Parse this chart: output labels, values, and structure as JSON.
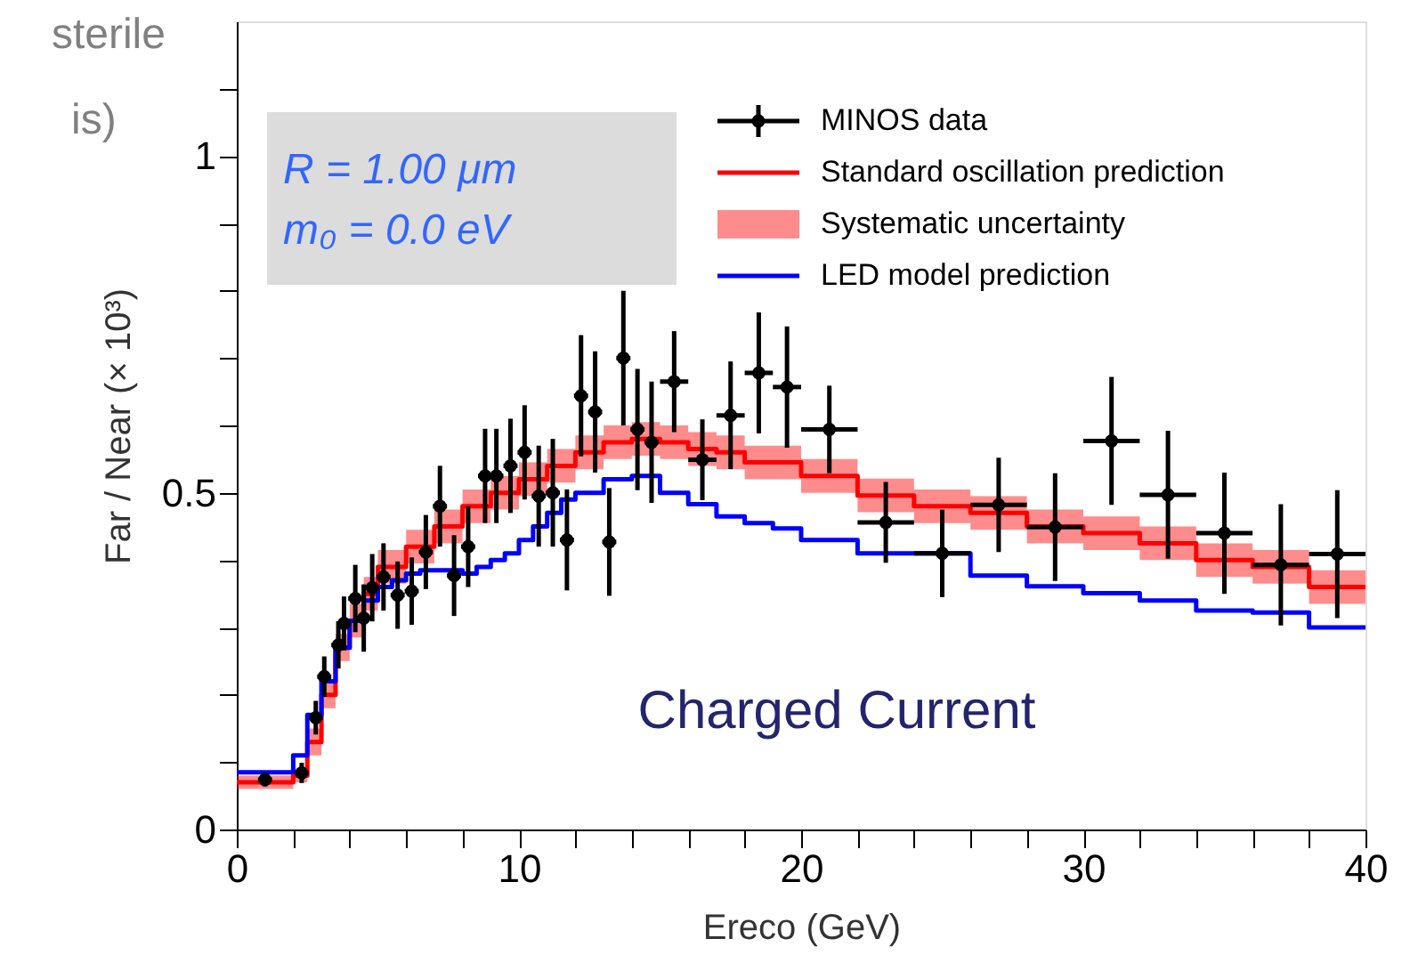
{
  "chart_data": {
    "type": "scatter",
    "xlabel": "Ereco (GeV)",
    "ylabel": "Far / Near (× 10³)",
    "xlim": [
      0,
      40
    ],
    "ylim": [
      0,
      1.2
    ],
    "xticks": [
      0,
      {
        "value": 2,
        "label": null
      },
      {
        "value": 4,
        "label": null
      },
      {
        "value": 6,
        "label": null
      },
      {
        "value": 8,
        "label": null
      },
      10,
      {
        "value": 12,
        "label": null
      },
      {
        "value": 14,
        "label": null
      },
      {
        "value": 16,
        "label": null
      },
      {
        "value": 18,
        "label": null
      },
      20,
      {
        "value": 22,
        "label": null
      },
      {
        "value": 24,
        "label": null
      },
      {
        "value": 26,
        "label": null
      },
      {
        "value": 28,
        "label": null
      },
      30,
      {
        "value": 32,
        "label": null
      },
      {
        "value": 34,
        "label": null
      },
      {
        "value": 36,
        "label": null
      },
      {
        "value": 38,
        "label": null
      },
      40
    ],
    "yticks": [
      0,
      {
        "value": 0.1,
        "label": null
      },
      {
        "value": 0.2,
        "label": null
      },
      {
        "value": 0.3,
        "label": null
      },
      {
        "value": 0.4,
        "label": null
      },
      0.5,
      {
        "value": 0.6,
        "label": null
      },
      {
        "value": 0.7,
        "label": null
      },
      {
        "value": 0.8,
        "label": null
      },
      {
        "value": 0.9,
        "label": null
      },
      1,
      {
        "value": 1.1,
        "label": null
      }
    ],
    "grid": false,
    "legend": "top right",
    "annotations": [
      "sterile",
      "is)",
      "R = 1.00 μm",
      "m₀ = 0.0 eV",
      "Charged Current",
      "Systematic uncertainty"
    ],
    "series": [
      {
        "name": "MINOS data",
        "color": "#000000",
        "marker": "circle",
        "x": [
          1.0,
          2.3,
          2.8,
          3.1,
          3.6,
          3.8,
          4.2,
          4.5,
          4.8,
          5.2,
          5.7,
          6.2,
          6.7,
          7.2,
          7.7,
          8.2,
          8.8,
          9.2,
          9.7,
          10.2,
          10.7,
          11.2,
          11.7,
          12.2,
          12.7,
          13.2,
          13.7,
          14.2,
          14.7,
          15.5,
          16.5,
          17.5,
          18.5,
          19.5,
          21.0,
          23.0,
          25.0,
          27.0,
          29.0,
          31.0,
          33.0,
          35.0,
          37.0,
          39.0
        ],
        "values": [
          0.074,
          0.084,
          0.166,
          0.227,
          0.274,
          0.306,
          0.343,
          0.314,
          0.359,
          0.375,
          0.348,
          0.354,
          0.412,
          0.48,
          0.377,
          0.42,
          0.525,
          0.525,
          0.54,
          0.56,
          0.495,
          0.5,
          0.43,
          0.644,
          0.62,
          0.427,
          0.7,
          0.594,
          0.575,
          0.665,
          0.549,
          0.615,
          0.678,
          0.657,
          0.594,
          0.456,
          0.41,
          0.482,
          0.449,
          0.577,
          0.497,
          0.44,
          0.393,
          0.409
        ],
        "errors": [
          0.01,
          0.015,
          0.025,
          0.03,
          0.035,
          0.04,
          0.05,
          0.05,
          0.05,
          0.05,
          0.05,
          0.05,
          0.055,
          0.06,
          0.06,
          0.06,
          0.07,
          0.07,
          0.07,
          0.07,
          0.075,
          0.08,
          0.075,
          0.09,
          0.09,
          0.08,
          0.1,
          0.09,
          0.09,
          0.075,
          0.06,
          0.08,
          0.09,
          0.09,
          0.065,
          0.06,
          0.065,
          0.07,
          0.08,
          0.095,
          0.095,
          0.09,
          0.09,
          0.095
        ],
        "xerrors": [
          0.25,
          0.25,
          0.25,
          0.25,
          0.25,
          0.25,
          0.25,
          0.25,
          0.25,
          0.25,
          0.25,
          0.25,
          0.25,
          0.25,
          0.25,
          0.25,
          0.25,
          0.25,
          0.25,
          0.25,
          0.25,
          0.25,
          0.25,
          0.25,
          0.25,
          0.25,
          0.25,
          0.25,
          0.25,
          0.5,
          0.5,
          0.5,
          0.5,
          0.5,
          1,
          1,
          1,
          1,
          1,
          1,
          1,
          1,
          1,
          1
        ]
      },
      {
        "name": "Standard oscillation prediction",
        "type": "step",
        "color": "#ff0000",
        "x": [
          0,
          2,
          2.5,
          3,
          3.5,
          4,
          4.5,
          5,
          6,
          7,
          8,
          9,
          10,
          11,
          12,
          13,
          14,
          15,
          16,
          17,
          18,
          20,
          22,
          24,
          26,
          28,
          30,
          32,
          34,
          36,
          38,
          40
        ],
        "values": [
          0.07,
          0.08,
          0.13,
          0.2,
          0.27,
          0.31,
          0.35,
          0.39,
          0.42,
          0.45,
          0.48,
          0.5,
          0.52,
          0.54,
          0.56,
          0.575,
          0.58,
          0.575,
          0.565,
          0.56,
          0.545,
          0.525,
          0.496,
          0.48,
          0.47,
          0.45,
          0.44,
          0.425,
          0.4,
          0.39,
          0.36,
          0.36
        ],
        "lower": [
          0.06,
          0.07,
          0.11,
          0.18,
          0.25,
          0.285,
          0.325,
          0.365,
          0.395,
          0.425,
          0.455,
          0.475,
          0.495,
          0.515,
          0.535,
          0.55,
          0.555,
          0.55,
          0.54,
          0.535,
          0.52,
          0.5,
          0.471,
          0.455,
          0.445,
          0.425,
          0.415,
          0.4,
          0.375,
          0.365,
          0.335,
          0.335
        ],
        "upper": [
          0.08,
          0.09,
          0.15,
          0.22,
          0.29,
          0.335,
          0.375,
          0.415,
          0.445,
          0.475,
          0.505,
          0.525,
          0.545,
          0.565,
          0.585,
          0.6,
          0.605,
          0.6,
          0.59,
          0.585,
          0.57,
          0.55,
          0.521,
          0.505,
          0.495,
          0.475,
          0.465,
          0.45,
          0.425,
          0.415,
          0.385,
          0.385
        ]
      },
      {
        "name": "LED model prediction",
        "type": "step",
        "color": "#0000ff",
        "x": [
          0,
          2,
          2.5,
          3,
          3.5,
          4,
          4.5,
          5,
          5.5,
          6,
          6.5,
          8,
          8.5,
          9,
          9.5,
          10,
          10.5,
          11,
          11.5,
          12,
          13,
          14,
          15,
          16,
          17,
          18,
          19,
          20,
          22,
          24,
          26,
          28,
          30,
          32,
          34,
          36,
          38,
          40
        ],
        "values": [
          0.085,
          0.11,
          0.17,
          0.22,
          0.27,
          0.31,
          0.34,
          0.36,
          0.37,
          0.38,
          0.385,
          0.38,
          0.39,
          0.4,
          0.41,
          0.43,
          0.45,
          0.47,
          0.49,
          0.5,
          0.52,
          0.525,
          0.5,
          0.483,
          0.465,
          0.455,
          0.447,
          0.43,
          0.41,
          0.41,
          0.377,
          0.361,
          0.351,
          0.34,
          0.325,
          0.322,
          0.3,
          0.3
        ]
      }
    ]
  }
}
